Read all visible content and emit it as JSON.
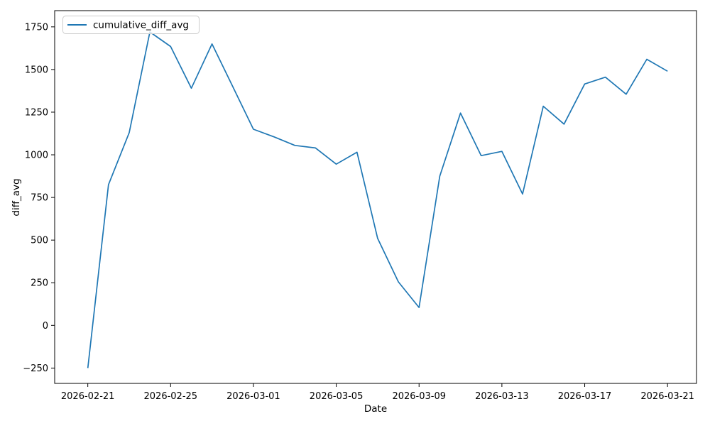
{
  "chart_data": {
    "type": "line",
    "title": "",
    "xlabel": "Date",
    "ylabel": "diff_avg",
    "grid": false,
    "background": "#ffffff",
    "axis_color": "#000000",
    "legend": {
      "position": "upper left",
      "entries": [
        {
          "label": "cumulative_diff_avg",
          "color": "#1f77b4"
        }
      ]
    },
    "x_index_range": [
      -1.6,
      29.4
    ],
    "ylim": [
      -340,
      1845
    ],
    "y_ticks": [
      -250,
      0,
      250,
      500,
      750,
      1000,
      1250,
      1500,
      1750
    ],
    "y_tick_labels": [
      "−250",
      "0",
      "250",
      "500",
      "750",
      "1000",
      "1250",
      "1500",
      "1750"
    ],
    "x_ticks": [
      {
        "index": 0,
        "label": "2026-02-21"
      },
      {
        "index": 4,
        "label": "2026-02-25"
      },
      {
        "index": 8,
        "label": "2026-03-01"
      },
      {
        "index": 12,
        "label": "2026-03-05"
      },
      {
        "index": 16,
        "label": "2026-03-09"
      },
      {
        "index": 20,
        "label": "2026-03-13"
      },
      {
        "index": 24,
        "label": "2026-03-17"
      },
      {
        "index": 28,
        "label": "2026-03-21"
      }
    ],
    "series": [
      {
        "name": "cumulative_diff_avg",
        "color": "#1f77b4",
        "x": [
          "2026-02-21",
          "2026-02-22",
          "2026-02-23",
          "2026-02-24",
          "2026-02-25",
          "2026-02-26",
          "2026-02-27",
          "2026-02-28",
          "2026-03-01",
          "2026-03-02",
          "2026-03-03",
          "2026-03-04",
          "2026-03-05",
          "2026-03-06",
          "2026-03-07",
          "2026-03-08",
          "2026-03-09",
          "2026-03-10",
          "2026-03-11",
          "2026-03-12",
          "2026-03-13",
          "2026-03-14",
          "2026-03-15",
          "2026-03-16",
          "2026-03-17",
          "2026-03-18",
          "2026-03-19",
          "2026-03-20",
          "2026-03-21"
        ],
        "values": [
          -250,
          825,
          1130,
          1720,
          1635,
          1390,
          1650,
          1400,
          1150,
          1105,
          1055,
          1040,
          945,
          1015,
          510,
          255,
          105,
          875,
          1245,
          995,
          1020,
          770,
          1285,
          1180,
          1415,
          1455,
          1355,
          1560,
          1490
        ]
      }
    ]
  }
}
